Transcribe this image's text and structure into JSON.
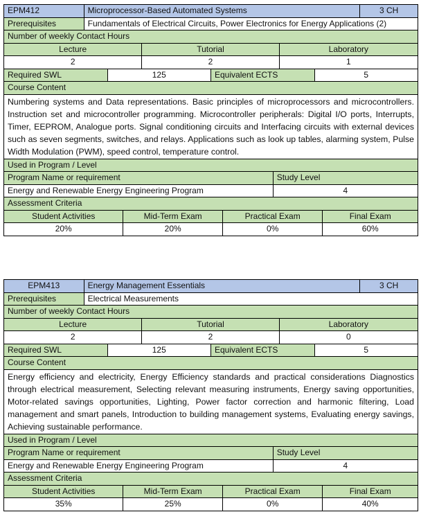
{
  "colors": {
    "header_blue": "#b4c6e7",
    "label_green": "#c5e0b3"
  },
  "labels": {
    "prerequisites": "Prerequisites",
    "contact_hours": "Number of weekly Contact Hours",
    "lecture": "Lecture",
    "tutorial": "Tutorial",
    "laboratory": "Laboratory",
    "required_swl": "Required SWL",
    "equivalent_ects": "Equivalent ECTS",
    "course_content": "Course Content",
    "used_in_program": "Used in Program / Level",
    "program_name": "Program Name or requirement",
    "study_level": "Study Level",
    "assessment_criteria": "Assessment Criteria",
    "student_activities": "Student Activities",
    "midterm": "Mid-Term Exam",
    "practical": "Practical Exam",
    "final": "Final Exam"
  },
  "courses": [
    {
      "code": "EPM412",
      "title": "Microprocessor-Based Automated Systems",
      "credit_hours": "3 CH",
      "prerequisites": "Fundamentals of Electrical Circuits, Power Electronics for Energy Applications (2)",
      "lecture": "2",
      "tutorial": "2",
      "laboratory": "1",
      "swl": "125",
      "ects": "5",
      "content": "Numbering systems and Data representations. Basic principles of microprocessors and microcontrollers. Instruction set and microcontroller programming. Microcontroller peripherals: Digital I/O ports, Interrupts, Timer, EEPROM, Analogue ports. Signal conditioning circuits and Interfacing circuits with external devices such as seven segments, switches, and relays. Applications such as look up tables, alarming system, Pulse Width Modulation (PWM), speed control, temperature control.",
      "program": "Energy and Renewable Energy Engineering Program",
      "level": "4",
      "student_activities": "20%",
      "midterm": "20%",
      "practical": "0%",
      "final": "60%"
    },
    {
      "code": "EPM413",
      "title": "Energy Management Essentials",
      "credit_hours": "3 CH",
      "prerequisites": "Electrical Measurements",
      "lecture": "2",
      "tutorial": "2",
      "laboratory": "0",
      "swl": "125",
      "ects": "5",
      "content": "Energy efficiency and electricity, Energy Efficiency standards and practical considerations Diagnostics through electrical measurement, Selecting relevant measuring instruments, Energy saving opportunities, Motor-related savings opportunities, Lighting, Power factor correction and harmonic filtering, Load management and smart panels, Introduction to building management systems, Evaluating energy savings, Achieving sustainable performance.",
      "program": "Energy and Renewable Energy Engineering Program",
      "level": "4",
      "student_activities": "35%",
      "midterm": "25%",
      "practical": "0%",
      "final": "40%"
    }
  ]
}
